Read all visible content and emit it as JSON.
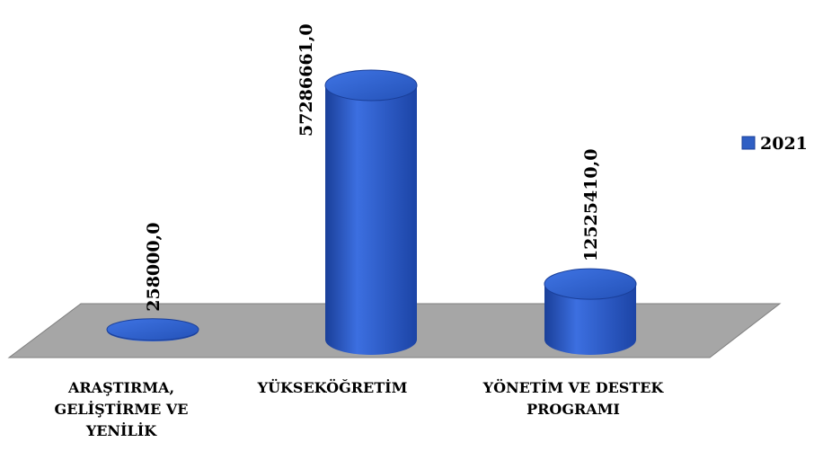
{
  "chart_data": {
    "type": "bar",
    "categories": [
      "ARAŞTIRMA, GELİŞTİRME VE YENİLİK",
      "YÜKSEKÖĞRETİM",
      "YÖNETİM VE DESTEK PROGRAMI"
    ],
    "series": [
      {
        "name": "2021",
        "color": "#2f5fc4",
        "values": [
          258000,
          57286661,
          12525410
        ],
        "value_labels": [
          "258000,0",
          "57286661,0",
          "12525410,0"
        ]
      }
    ]
  }
}
